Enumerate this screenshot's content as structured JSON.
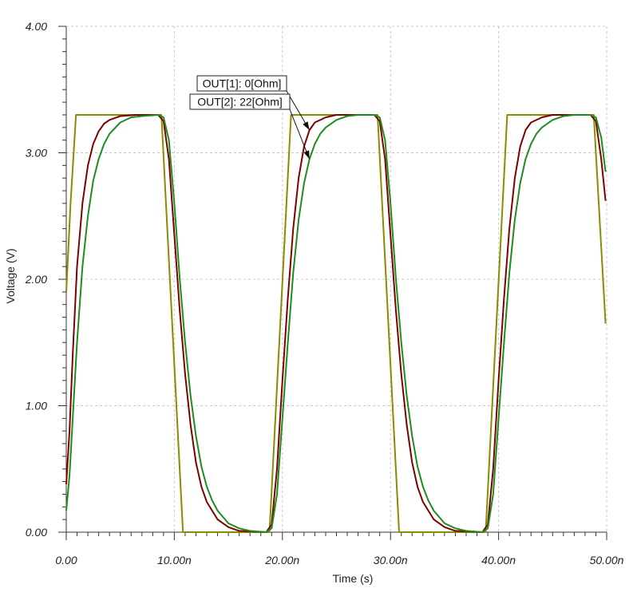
{
  "chart_data": {
    "type": "line",
    "title": "",
    "xlabel": "Time (s)",
    "ylabel": "Voltage (V)",
    "xlim": [
      0,
      50
    ],
    "ylim": [
      0,
      4
    ],
    "x_unit": "ns",
    "grid": true,
    "x_ticks": [
      {
        "value": 0,
        "label": "0.00"
      },
      {
        "value": 10,
        "label": "10.00n"
      },
      {
        "value": 20,
        "label": "20.00n"
      },
      {
        "value": 30,
        "label": "30.00n"
      },
      {
        "value": 40,
        "label": "40.00n"
      },
      {
        "value": 50,
        "label": "50.00n"
      }
    ],
    "y_ticks": [
      {
        "value": 0,
        "label": "0.00"
      },
      {
        "value": 1,
        "label": "1.00"
      },
      {
        "value": 2,
        "label": "2.00"
      },
      {
        "value": 3,
        "label": "3.00"
      },
      {
        "value": 4,
        "label": "4.00"
      }
    ],
    "series": [
      {
        "color": "#8b8b00",
        "x": [
          0,
          0.4,
          0.9,
          8.8,
          10.8,
          18.8,
          20.8,
          28.8,
          30.8,
          38.8,
          40.8,
          48.8,
          49.9
        ],
        "values": [
          1.9,
          2.6,
          3.3,
          3.3,
          0.0,
          0.0,
          3.3,
          3.3,
          0.0,
          0.0,
          3.3,
          3.3,
          1.65
        ]
      },
      {
        "name": "OUT[1]: 0[Ohm]",
        "color": "#7f0000",
        "x": [
          0,
          0.3,
          0.6,
          1.0,
          1.5,
          2.0,
          2.5,
          3.0,
          3.5,
          4.0,
          5.0,
          6.5,
          8.5,
          9.0,
          9.5,
          10.0,
          10.5,
          11.0,
          11.5,
          12.0,
          12.5,
          13.0,
          14.0,
          15.0,
          16.0,
          18.5,
          19.0,
          19.5,
          20.0,
          20.5,
          21.0,
          21.5,
          22.0,
          22.5,
          23.0,
          24.0,
          25.0,
          26.5,
          28.5,
          29.0,
          29.5,
          30.0,
          30.5,
          31.0,
          31.5,
          32.0,
          32.5,
          33.0,
          34.0,
          35.0,
          36.0,
          38.5,
          39.0,
          39.5,
          40.0,
          40.5,
          41.0,
          41.5,
          42.0,
          42.5,
          43.0,
          44.0,
          45.0,
          46.5,
          48.5,
          49.0,
          49.5,
          49.9
        ],
        "values": [
          0.38,
          0.8,
          1.4,
          2.1,
          2.6,
          2.9,
          3.07,
          3.17,
          3.23,
          3.26,
          3.29,
          3.3,
          3.3,
          3.25,
          2.95,
          2.35,
          1.75,
          1.25,
          0.85,
          0.55,
          0.36,
          0.24,
          0.1,
          0.04,
          0.01,
          0.0,
          0.06,
          0.5,
          1.2,
          1.85,
          2.4,
          2.8,
          3.05,
          3.18,
          3.24,
          3.28,
          3.3,
          3.3,
          3.3,
          3.25,
          2.95,
          2.35,
          1.75,
          1.25,
          0.85,
          0.55,
          0.36,
          0.24,
          0.1,
          0.04,
          0.01,
          0.0,
          0.06,
          0.5,
          1.2,
          1.85,
          2.4,
          2.8,
          3.05,
          3.18,
          3.24,
          3.28,
          3.3,
          3.3,
          3.3,
          3.25,
          2.95,
          2.62
        ]
      },
      {
        "name": "OUT[2]: 22[Ohm]",
        "color": "#1e8c1e",
        "x": [
          0,
          0.3,
          0.6,
          1.0,
          1.5,
          2.0,
          2.5,
          3.0,
          3.5,
          4.0,
          5.0,
          6.0,
          7.0,
          8.5,
          9.0,
          9.5,
          10.0,
          10.5,
          11.0,
          11.5,
          12.0,
          12.5,
          13.0,
          13.5,
          14.0,
          15.0,
          16.0,
          17.0,
          18.5,
          19.0,
          19.5,
          20.0,
          20.5,
          21.0,
          21.5,
          22.0,
          22.5,
          23.0,
          23.5,
          24.0,
          25.0,
          26.0,
          27.0,
          28.5,
          29.0,
          29.5,
          30.0,
          30.5,
          31.0,
          31.5,
          32.0,
          32.5,
          33.0,
          33.5,
          34.0,
          35.0,
          36.0,
          37.0,
          38.5,
          39.0,
          39.5,
          40.0,
          40.5,
          41.0,
          41.5,
          42.0,
          42.5,
          43.0,
          43.5,
          44.0,
          45.0,
          46.0,
          47.0,
          48.5,
          49.0,
          49.5,
          49.9
        ],
        "values": [
          0.17,
          0.45,
          0.9,
          1.5,
          2.1,
          2.5,
          2.78,
          2.95,
          3.07,
          3.15,
          3.24,
          3.28,
          3.29,
          3.3,
          3.28,
          3.1,
          2.6,
          2.0,
          1.5,
          1.08,
          0.76,
          0.52,
          0.36,
          0.25,
          0.17,
          0.07,
          0.03,
          0.01,
          0.0,
          0.03,
          0.3,
          0.9,
          1.5,
          2.05,
          2.47,
          2.76,
          2.95,
          3.07,
          3.15,
          3.2,
          3.26,
          3.29,
          3.3,
          3.3,
          3.28,
          3.1,
          2.6,
          2.0,
          1.5,
          1.08,
          0.76,
          0.52,
          0.36,
          0.25,
          0.17,
          0.07,
          0.03,
          0.01,
          0.0,
          0.03,
          0.3,
          0.9,
          1.5,
          2.05,
          2.47,
          2.76,
          2.95,
          3.07,
          3.15,
          3.2,
          3.26,
          3.29,
          3.3,
          3.3,
          3.28,
          3.12,
          2.85
        ]
      }
    ],
    "annotations": [
      {
        "text": "OUT[1]: 0[Ohm]",
        "points_to": {
          "series": 1,
          "x": 22.5,
          "y": 3.18
        }
      },
      {
        "text": "OUT[2]: 22[Ohm]",
        "points_to": {
          "series": 2,
          "x": 22.5,
          "y": 2.95
        }
      }
    ]
  }
}
